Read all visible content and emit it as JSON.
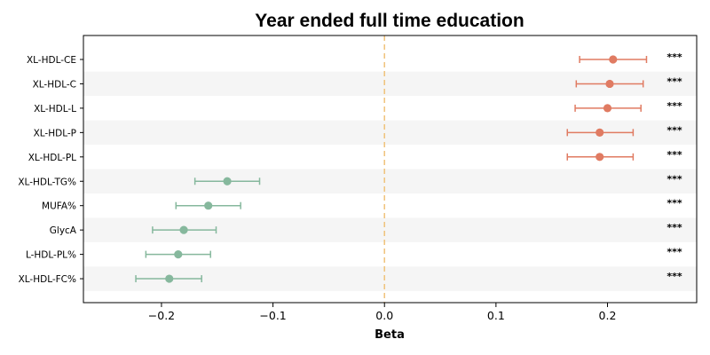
{
  "chart_data": {
    "type": "scatter",
    "title": "Year ended full time education",
    "xlabel": "Beta",
    "ylabel": "",
    "xlim": [
      -0.27,
      0.28
    ],
    "x_ticks": [
      -0.2,
      -0.1,
      0.0,
      0.1,
      0.2
    ],
    "x_tick_labels": [
      "−0.2",
      "−0.1",
      "0.0",
      "0.1",
      "0.2"
    ],
    "reference_line": 0.0,
    "significance_label": "***",
    "colors": {
      "positive": "#e07b62",
      "negative": "#86b89d",
      "reference_line": "#f0c27a",
      "row_stripe": "#f5f5f5"
    },
    "rows": [
      {
        "label": "XL-HDL-CE",
        "beta": 0.205,
        "ci_low": 0.175,
        "ci_high": 0.235,
        "sig": "***"
      },
      {
        "label": "XL-HDL-C",
        "beta": 0.202,
        "ci_low": 0.172,
        "ci_high": 0.232,
        "sig": "***"
      },
      {
        "label": "XL-HDL-L",
        "beta": 0.2,
        "ci_low": 0.171,
        "ci_high": 0.23,
        "sig": "***"
      },
      {
        "label": "XL-HDL-P",
        "beta": 0.193,
        "ci_low": 0.164,
        "ci_high": 0.223,
        "sig": "***"
      },
      {
        "label": "XL-HDL-PL",
        "beta": 0.193,
        "ci_low": 0.164,
        "ci_high": 0.223,
        "sig": "***"
      },
      {
        "label": "XL-HDL-TG%",
        "beta": -0.141,
        "ci_low": -0.17,
        "ci_high": -0.112,
        "sig": "***"
      },
      {
        "label": "MUFA%",
        "beta": -0.158,
        "ci_low": -0.187,
        "ci_high": -0.129,
        "sig": "***"
      },
      {
        "label": "GlycA",
        "beta": -0.18,
        "ci_low": -0.208,
        "ci_high": -0.151,
        "sig": "***"
      },
      {
        "label": "L-HDL-PL%",
        "beta": -0.185,
        "ci_low": -0.214,
        "ci_high": -0.156,
        "sig": "***"
      },
      {
        "label": "XL-HDL-FC%",
        "beta": -0.193,
        "ci_low": -0.223,
        "ci_high": -0.164,
        "sig": "***"
      }
    ]
  }
}
